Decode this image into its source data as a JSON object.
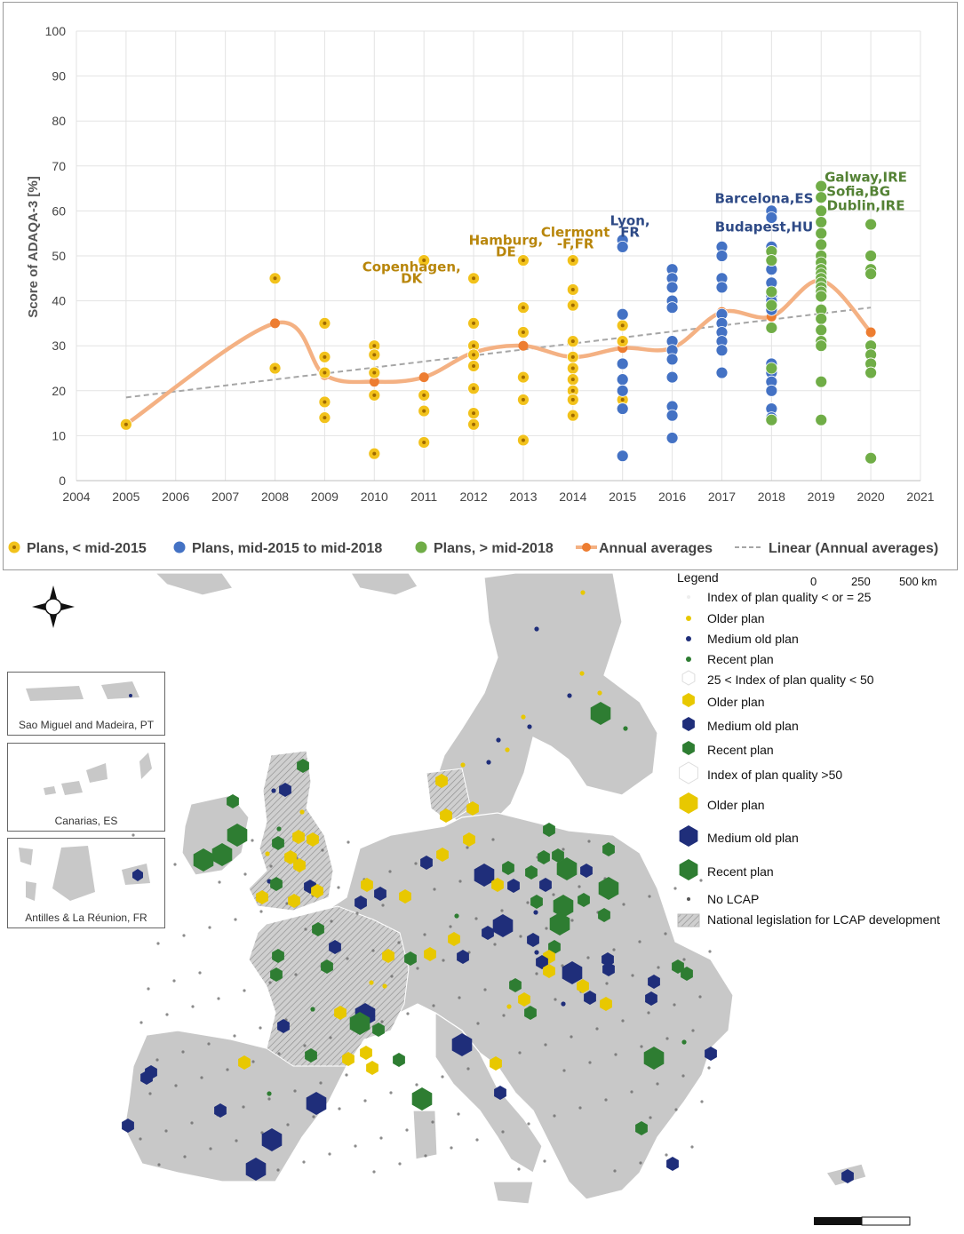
{
  "chart_data": {
    "type": "scatter",
    "ylabel": "Score of  ADAQA-3  [%]",
    "xlim": [
      2004,
      2021
    ],
    "ylim": [
      0,
      100
    ],
    "x_ticks": [
      "2004",
      "2005",
      "2006",
      "2007",
      "2008",
      "2009",
      "2010",
      "2011",
      "2012",
      "2013",
      "2014",
      "2015",
      "2016",
      "2017",
      "2018",
      "2019",
      "2020",
      "2021"
    ],
    "y_ticks": [
      "0",
      "10",
      "20",
      "30",
      "40",
      "50",
      "60",
      "70",
      "80",
      "90",
      "100"
    ],
    "grid": true,
    "legend_position": "bottom",
    "series": [
      {
        "name": "Plans, < mid-2015",
        "color": "#f2c21b",
        "points": [
          [
            2005,
            12.5
          ],
          [
            2008,
            45
          ],
          [
            2008,
            25
          ],
          [
            2009,
            35
          ],
          [
            2009,
            27.5
          ],
          [
            2009,
            24
          ],
          [
            2009,
            17.5
          ],
          [
            2009,
            14
          ],
          [
            2010,
            30
          ],
          [
            2010,
            28
          ],
          [
            2010,
            24
          ],
          [
            2010,
            19
          ],
          [
            2010,
            6
          ],
          [
            2011,
            49
          ],
          [
            2011,
            19
          ],
          [
            2011,
            15.5
          ],
          [
            2011,
            8.5
          ],
          [
            2012,
            45
          ],
          [
            2012,
            35
          ],
          [
            2012,
            30
          ],
          [
            2012,
            28
          ],
          [
            2012,
            25.5
          ],
          [
            2012,
            20.5
          ],
          [
            2012,
            15
          ],
          [
            2012,
            12.5
          ],
          [
            2013,
            49
          ],
          [
            2013,
            38.5
          ],
          [
            2013,
            33
          ],
          [
            2013,
            23
          ],
          [
            2013,
            18
          ],
          [
            2013,
            9
          ],
          [
            2014,
            49
          ],
          [
            2014,
            42.5
          ],
          [
            2014,
            39
          ],
          [
            2014,
            31
          ],
          [
            2014,
            27.5
          ],
          [
            2014,
            25
          ],
          [
            2014,
            22.5
          ],
          [
            2014,
            20
          ],
          [
            2014,
            18
          ],
          [
            2014,
            14.5
          ],
          [
            2015,
            34.5
          ],
          [
            2015,
            31
          ],
          [
            2015,
            18
          ]
        ]
      },
      {
        "name": "Plans, mid-2015 to mid-2018",
        "color": "#4472c4",
        "points": [
          [
            2015,
            53.5
          ],
          [
            2015,
            52
          ],
          [
            2015,
            37
          ],
          [
            2015,
            26
          ],
          [
            2015,
            22.5
          ],
          [
            2015,
            20
          ],
          [
            2015,
            16
          ],
          [
            2015,
            5.5
          ],
          [
            2016,
            47
          ],
          [
            2016,
            45
          ],
          [
            2016,
            43
          ],
          [
            2016,
            40
          ],
          [
            2016,
            38.5
          ],
          [
            2016,
            31
          ],
          [
            2016,
            29
          ],
          [
            2016,
            27
          ],
          [
            2016,
            23
          ],
          [
            2016,
            16.5
          ],
          [
            2016,
            14.5
          ],
          [
            2016,
            9.5
          ],
          [
            2017,
            52
          ],
          [
            2017,
            50
          ],
          [
            2017,
            45
          ],
          [
            2017,
            43
          ],
          [
            2017,
            37
          ],
          [
            2017,
            35
          ],
          [
            2017,
            33
          ],
          [
            2017,
            31
          ],
          [
            2017,
            29
          ],
          [
            2017,
            24
          ],
          [
            2018,
            60
          ],
          [
            2018,
            58.5
          ],
          [
            2018,
            52
          ],
          [
            2018,
            47
          ],
          [
            2018,
            44
          ],
          [
            2018,
            41
          ],
          [
            2018,
            40
          ],
          [
            2018,
            38
          ],
          [
            2018,
            26
          ],
          [
            2018,
            24
          ],
          [
            2018,
            22
          ],
          [
            2018,
            20
          ],
          [
            2018,
            16
          ],
          [
            2018,
            14
          ]
        ]
      },
      {
        "name": "Plans, > mid-2018",
        "color": "#70ad47",
        "points": [
          [
            2018,
            51
          ],
          [
            2018,
            49
          ],
          [
            2018,
            42
          ],
          [
            2018,
            39
          ],
          [
            2018,
            34
          ],
          [
            2018,
            25
          ],
          [
            2018,
            13.5
          ],
          [
            2019,
            65.5
          ],
          [
            2019,
            63
          ],
          [
            2019,
            60
          ],
          [
            2019,
            57.5
          ],
          [
            2019,
            55
          ],
          [
            2019,
            52.5
          ],
          [
            2019,
            50
          ],
          [
            2019,
            48.5
          ],
          [
            2019,
            47
          ],
          [
            2019,
            46
          ],
          [
            2019,
            45
          ],
          [
            2019,
            44
          ],
          [
            2019,
            43
          ],
          [
            2019,
            42
          ],
          [
            2019,
            41
          ],
          [
            2019,
            38
          ],
          [
            2019,
            36
          ],
          [
            2019,
            33.5
          ],
          [
            2019,
            31
          ],
          [
            2019,
            30
          ],
          [
            2019,
            22
          ],
          [
            2019,
            13.5
          ],
          [
            2020,
            57
          ],
          [
            2020,
            50
          ],
          [
            2020,
            47
          ],
          [
            2020,
            46
          ],
          [
            2020,
            30
          ],
          [
            2020,
            28
          ],
          [
            2020,
            26
          ],
          [
            2020,
            24
          ],
          [
            2020,
            5
          ]
        ]
      }
    ],
    "annual_averages": {
      "name": "Annual averages",
      "color": "#f4b183",
      "marker_color": "#ed7d31",
      "points": [
        [
          2005,
          12.5
        ],
        [
          2008,
          35
        ],
        [
          2009,
          23.5
        ],
        [
          2010,
          22
        ],
        [
          2011,
          23
        ],
        [
          2012,
          28.5
        ],
        [
          2013,
          30
        ],
        [
          2014,
          27.5
        ],
        [
          2015,
          29.5
        ],
        [
          2016,
          29.5
        ],
        [
          2017,
          37.5
        ],
        [
          2018,
          36.5
        ],
        [
          2019,
          44.5
        ],
        [
          2020,
          33
        ]
      ]
    },
    "trend": {
      "name": "Linear (Annual averages)",
      "color": "#a6a6a6",
      "from": [
        2005,
        18.5
      ],
      "to": [
        2020,
        38.5
      ]
    },
    "annotations": [
      {
        "lines": [
          "Copenhagen,",
          "DK"
        ],
        "color": "#b8860b",
        "x": 2010.75,
        "y": 46.5
      },
      {
        "lines": [
          "Hamburg,",
          "DE"
        ],
        "color": "#b8860b",
        "x": 2012.65,
        "y": 52.5
      },
      {
        "lines": [
          "Clermont",
          "-F,FR"
        ],
        "color": "#b8860b",
        "x": 2014.05,
        "y": 54.2
      },
      {
        "lines": [
          "Lyon,",
          "FR"
        ],
        "color": "#2e4a86",
        "x": 2015.15,
        "y": 56.8
      },
      {
        "lines": [
          "Barcelona,ES"
        ],
        "color": "#2e4a86",
        "x": 2017.85,
        "y": 61.8
      },
      {
        "lines": [
          "Budapest,HU"
        ],
        "color": "#2e4a86",
        "x": 2017.85,
        "y": 55.4
      },
      {
        "lines": [
          "Galway,IRE"
        ],
        "color": "#548235",
        "x": 2019.9,
        "y": 66.5
      },
      {
        "lines": [
          "Sofia,BG"
        ],
        "color": "#548235",
        "x": 2019.75,
        "y": 63.3
      },
      {
        "lines": [
          "Dublin,IRE"
        ],
        "color": "#548235",
        "x": 2019.9,
        "y": 60.2
      }
    ]
  },
  "map": {
    "legend_title": "Legend",
    "legend": [
      {
        "label": "Index of plan quality < or = 25",
        "symbol": "none",
        "size": "small"
      },
      {
        "label": "Older plan",
        "symbol": "dot",
        "color": "#e8c800",
        "size": "small"
      },
      {
        "label": "Medium old plan",
        "symbol": "dot",
        "color": "#1f2e7a",
        "size": "small"
      },
      {
        "label": "Recent plan",
        "symbol": "dot",
        "color": "#2e7d32",
        "size": "small"
      },
      {
        "label": "25 < Index of plan quality < 50",
        "symbol": "outline",
        "size": "medium"
      },
      {
        "label": "Older plan",
        "symbol": "hex",
        "color": "#e8c800",
        "size": "medium"
      },
      {
        "label": "Medium old plan",
        "symbol": "hex",
        "color": "#1f2e7a",
        "size": "medium"
      },
      {
        "label": "Recent plan",
        "symbol": "hex",
        "color": "#2e7d32",
        "size": "medium"
      },
      {
        "label": "Index of plan quality >50",
        "symbol": "outline",
        "size": "large"
      },
      {
        "label": "Older plan",
        "symbol": "hex",
        "color": "#e8c800",
        "size": "large"
      },
      {
        "label": "Medium old plan",
        "symbol": "hex",
        "color": "#1f2e7a",
        "size": "large"
      },
      {
        "label": "Recent plan",
        "symbol": "hex",
        "color": "#2e7d32",
        "size": "large"
      },
      {
        "label": "No LCAP",
        "symbol": "dot",
        "color": "#555555",
        "size": "tiny"
      },
      {
        "label": "National legislation for LCAP development",
        "symbol": "hatch",
        "size": "box"
      }
    ],
    "insets": [
      {
        "label": "Sao Miguel and Madeira, PT"
      },
      {
        "label": "Canarias, ES"
      },
      {
        "label": "Antilles & La Réunion, FR"
      }
    ],
    "scale_labels": [
      "0",
      "250",
      "500 km"
    ]
  }
}
